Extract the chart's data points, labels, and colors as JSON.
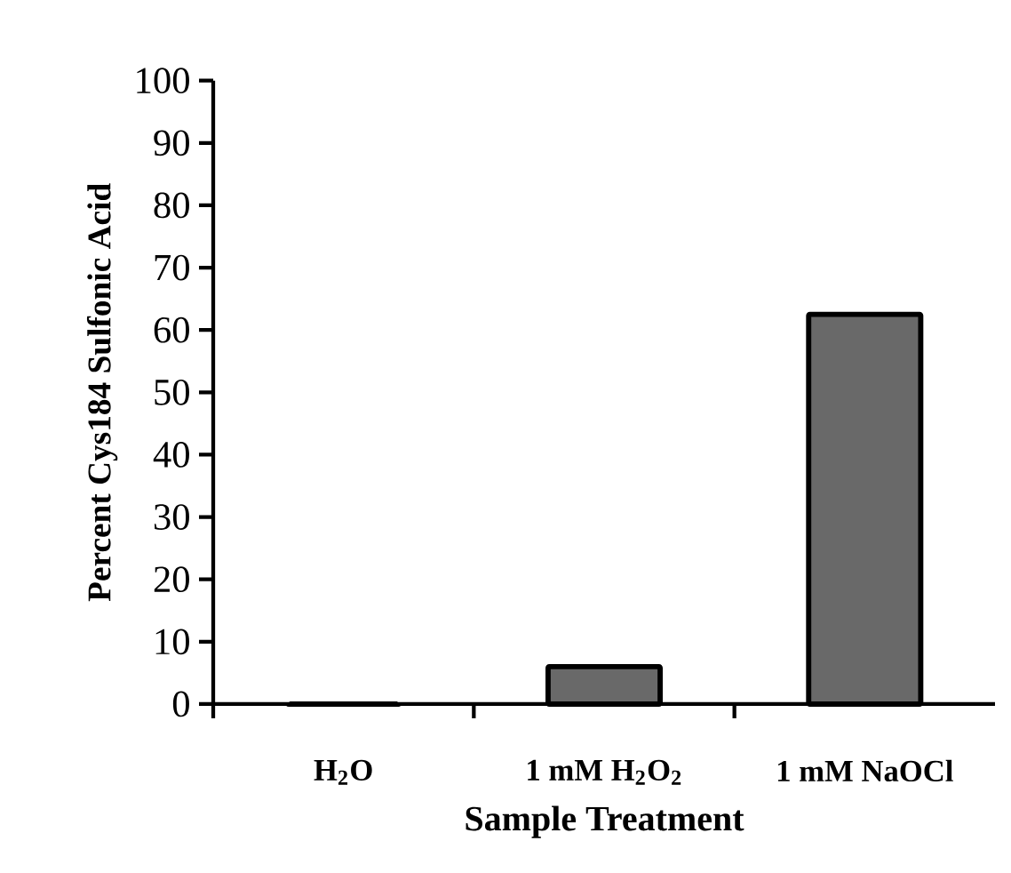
{
  "chart_data": {
    "type": "bar",
    "categories": [
      "H$_{2}$O",
      "1 mM H$_{2}$O$_{2}$",
      "1 mM NaOCl"
    ],
    "values": [
      0,
      6,
      62.5
    ],
    "color": "#696969",
    "ylim": [
      0,
      100
    ],
    "yticks": [
      0,
      10,
      20,
      30,
      40,
      50,
      60,
      70,
      80,
      90,
      100
    ],
    "xlabel": "Sample Treatment",
    "ylabel": "Percent Cys184 Sulfonic Acid"
  }
}
